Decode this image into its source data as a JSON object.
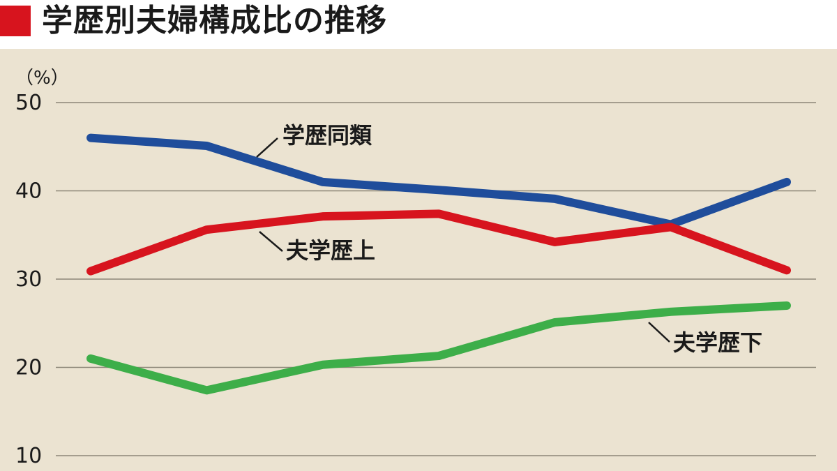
{
  "title": "学歴別夫婦構成比の推移",
  "chart_data": {
    "type": "line",
    "title": "学歴別夫婦構成比の推移",
    "ylabel": "（%）",
    "xlabel": "",
    "ylim": [
      10,
      50
    ],
    "yticks": [
      10,
      20,
      30,
      40,
      50
    ],
    "grid": true,
    "x": [
      1,
      2,
      3,
      4,
      5,
      6,
      7
    ],
    "series": [
      {
        "name": "学歴同類",
        "color": "#1f4d9b",
        "values": [
          46.0,
          45.1,
          41.0,
          40.1,
          39.1,
          36.2,
          41.0
        ]
      },
      {
        "name": "夫学歴上",
        "color": "#d7141e",
        "values": [
          30.9,
          35.6,
          37.1,
          37.4,
          34.2,
          35.9,
          31.0
        ]
      },
      {
        "name": "夫学歴下",
        "color": "#3dae49",
        "values": [
          21.0,
          17.4,
          20.3,
          21.3,
          25.1,
          26.3,
          27.0
        ]
      }
    ],
    "annotations": [
      {
        "series": 0,
        "text": "学歴同類"
      },
      {
        "series": 1,
        "text": "夫学歴上"
      },
      {
        "series": 2,
        "text": "夫学歴下"
      }
    ]
  }
}
